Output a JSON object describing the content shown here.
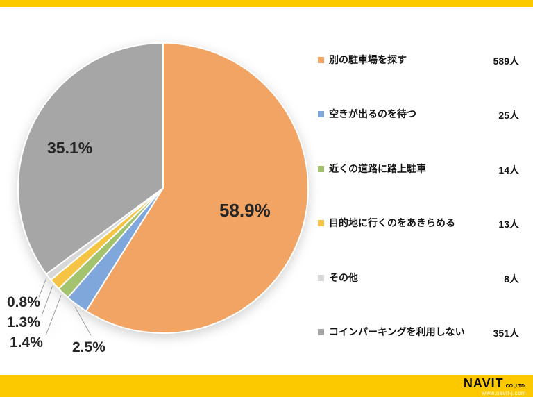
{
  "chart_data": {
    "type": "pie",
    "start_angle_deg": -90,
    "direction": "clockwise",
    "legend_position": "right",
    "slices": [
      {
        "label": "別の駐車場を探す",
        "count_label": "589人",
        "percent": 58.9,
        "percent_label": "58.9%",
        "color": "#F2A465"
      },
      {
        "label": "空きが出るのを待つ",
        "count_label": "25人",
        "percent": 2.5,
        "percent_label": "2.5%",
        "color": "#7FA7DB"
      },
      {
        "label": "近くの道路に路上駐車",
        "count_label": "14人",
        "percent": 1.4,
        "percent_label": "1.4%",
        "color": "#A4C36E"
      },
      {
        "label": "目的地に行くのをあきらめる",
        "count_label": "13人",
        "percent": 1.3,
        "percent_label": "1.3%",
        "color": "#F6C444"
      },
      {
        "label": "その他",
        "count_label": "8人",
        "percent": 0.8,
        "percent_label": "0.8%",
        "color": "#D8D8D8"
      },
      {
        "label": "コインパーキングを利用しない",
        "count_label": "351人",
        "percent": 35.1,
        "percent_label": "35.1%",
        "color": "#A6A6A6"
      }
    ]
  },
  "footer": {
    "brand": "NAVIT",
    "brand_suffix": "CO.,LTD.",
    "url": "www.navit-j.com"
  },
  "theme": {
    "frame_color": "#FCC800",
    "background": "#FFFFFF",
    "label_text_color": "#262626",
    "leader_line_color": "#9B9B9B"
  }
}
